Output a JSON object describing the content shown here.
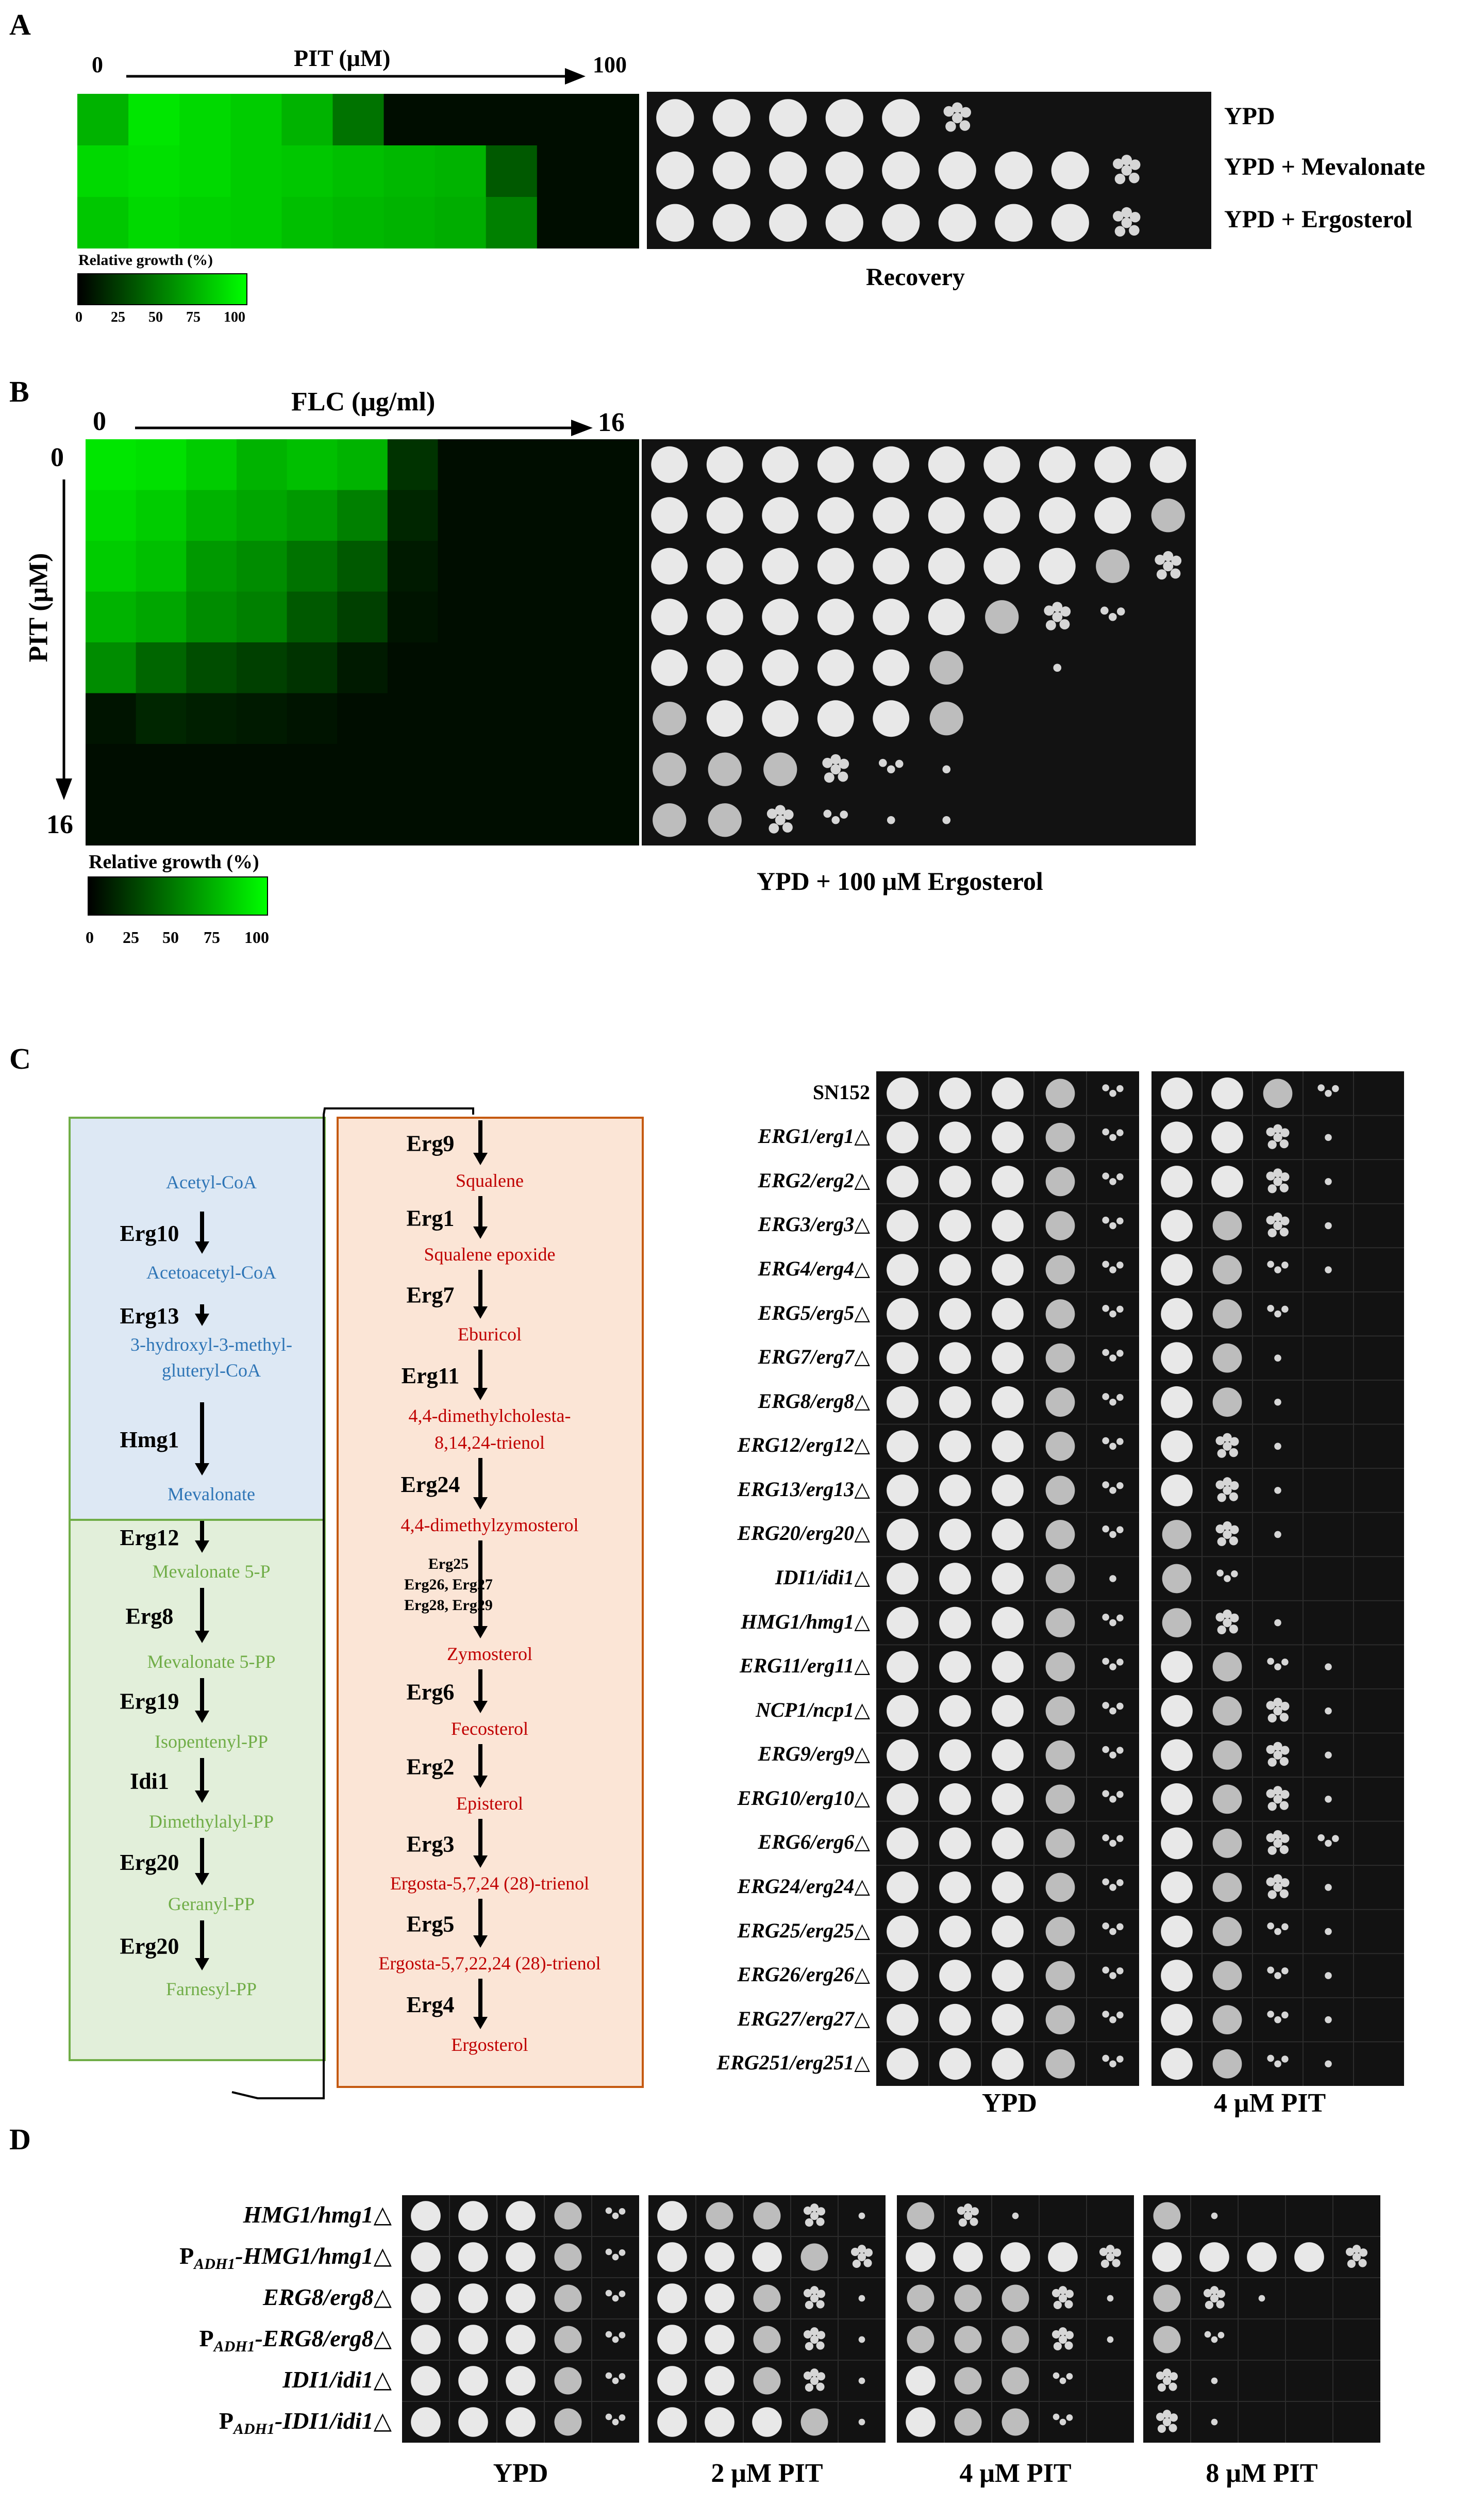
{
  "panel_a": {
    "letter": "A",
    "axis_label": "PIT (μM)",
    "axis_start": "0",
    "axis_end": "100",
    "heatmap_rows": [
      [
        70,
        90,
        85,
        80,
        70,
        45,
        5,
        5,
        5,
        5,
        5
      ],
      [
        85,
        88,
        85,
        80,
        78,
        75,
        72,
        70,
        35,
        5,
        5
      ],
      [
        78,
        85,
        82,
        80,
        75,
        72,
        70,
        68,
        50,
        5,
        5
      ]
    ],
    "legend_title": "Relative growth (%)",
    "legend_ticks": [
      "0",
      "25",
      "50",
      "75",
      "100"
    ],
    "plate_rows": [
      {
        "label": "YPD",
        "spots": [
          5,
          5,
          5,
          5,
          5,
          3,
          0,
          0,
          0,
          0
        ]
      },
      {
        "label": "YPD + Mevalonate",
        "spots": [
          5,
          5,
          5,
          5,
          5,
          5,
          5,
          5,
          3,
          0
        ]
      },
      {
        "label": "YPD + Ergosterol",
        "spots": [
          5,
          5,
          5,
          5,
          5,
          5,
          5,
          5,
          3,
          0
        ]
      }
    ],
    "plate_caption": "Recovery"
  },
  "panel_b": {
    "letter": "B",
    "x_axis_label": "FLC (μg/ml)",
    "x_start": "0",
    "x_end": "16",
    "y_axis_label": "PIT (μM)",
    "y_start": "0",
    "y_end": "16",
    "heatmap_rows": [
      [
        90,
        88,
        80,
        70,
        75,
        70,
        20,
        5,
        5,
        5,
        5
      ],
      [
        85,
        80,
        70,
        65,
        60,
        50,
        15,
        5,
        5,
        5,
        5
      ],
      [
        80,
        75,
        60,
        55,
        45,
        35,
        10,
        5,
        5,
        5,
        5
      ],
      [
        70,
        65,
        55,
        50,
        35,
        25,
        8,
        5,
        5,
        5,
        5
      ],
      [
        55,
        40,
        30,
        25,
        20,
        10,
        5,
        5,
        5,
        5,
        5
      ],
      [
        8,
        15,
        12,
        10,
        8,
        5,
        5,
        5,
        5,
        5,
        5
      ],
      [
        5,
        5,
        5,
        5,
        5,
        5,
        5,
        5,
        5,
        5,
        5
      ],
      [
        5,
        5,
        5,
        5,
        5,
        5,
        5,
        5,
        5,
        5,
        5
      ]
    ],
    "legend_title": "Relative growth (%)",
    "legend_ticks": [
      "0",
      "25",
      "50",
      "75",
      "100"
    ],
    "plate_spots": [
      [
        5,
        5,
        5,
        5,
        5,
        5,
        5,
        5,
        5,
        5
      ],
      [
        5,
        5,
        5,
        5,
        5,
        5,
        5,
        5,
        5,
        4
      ],
      [
        5,
        5,
        5,
        5,
        5,
        5,
        5,
        5,
        4,
        3
      ],
      [
        5,
        5,
        5,
        5,
        5,
        5,
        4,
        3,
        2,
        0
      ],
      [
        5,
        5,
        5,
        5,
        5,
        4,
        0,
        1,
        0,
        0
      ],
      [
        4,
        5,
        5,
        5,
        5,
        4,
        0,
        0,
        0,
        0
      ],
      [
        4,
        4,
        4,
        3,
        2,
        1,
        0,
        0,
        0,
        0
      ],
      [
        4,
        4,
        3,
        2,
        1,
        1,
        0,
        0,
        0,
        0
      ]
    ],
    "plate_caption": "YPD + 100 μM Ergosterol"
  },
  "panel_c": {
    "letter": "C",
    "colors": {
      "mevalonate_fill": "#dde8f4",
      "mevalonate_text": "#2e75b6",
      "isoprenoid_fill": "#e2efda",
      "isoprenoid_text": "#70ad47",
      "sterol_fill": "#fbe5d6",
      "sterol_text": "#c00000",
      "sterol_border": "#c55a11"
    },
    "mevalonate_steps": [
      {
        "metabolite": "Acetyl-CoA"
      },
      {
        "enzyme": "Erg10",
        "metabolite": "Acetoacetyl-CoA"
      },
      {
        "enzyme": "Erg13",
        "metabolite": [
          "3-hydroxyl-3-methyl-",
          "gluteryl-CoA"
        ]
      },
      {
        "enzyme": "Hmg1",
        "metabolite": "Mevalonate"
      }
    ],
    "isoprenoid_steps": [
      {
        "enzyme": "Erg12",
        "metabolite": "Mevalonate  5-P"
      },
      {
        "enzyme": "Erg8",
        "metabolite": "Mevalonate  5-PP"
      },
      {
        "enzyme": "Erg19",
        "metabolite": "Isopentenyl-PP"
      },
      {
        "enzyme": "Idi1",
        "metabolite": "Dimethylalyl-PP"
      },
      {
        "enzyme": "Erg20",
        "metabolite": "Geranyl-PP"
      },
      {
        "enzyme": "Erg20",
        "metabolite": "Farnesyl-PP"
      }
    ],
    "sterol_steps": [
      {
        "enzyme": "Erg9",
        "metabolite": "Squalene"
      },
      {
        "enzyme": "Erg1",
        "metabolite": "Squalene  epoxide"
      },
      {
        "enzyme": "Erg7",
        "metabolite": "Eburicol"
      },
      {
        "enzyme": "Erg11",
        "metabolite": [
          "4,4-dimethylcholesta-",
          "8,14,24-trienol"
        ]
      },
      {
        "enzyme": "Erg24",
        "metabolite": "4,4-dimethylzymosterol"
      },
      {
        "enzyme": [
          "Erg25",
          "Erg26, Erg27",
          "Erg28, Erg29"
        ],
        "metabolite": "Zymosterol"
      },
      {
        "enzyme": "Erg6",
        "metabolite": "Fecosterol"
      },
      {
        "enzyme": "Erg2",
        "metabolite": "Episterol"
      },
      {
        "enzyme": "Erg3",
        "metabolite": "Ergosta-5,7,24  (28)-trienol"
      },
      {
        "enzyme": "Erg5",
        "metabolite": "Ergosta-5,7,22,24  (28)-trienol"
      },
      {
        "enzyme": "Erg4",
        "metabolite": "Ergosterol"
      }
    ],
    "strains": [
      "SN152",
      "ERG1/erg1△",
      "ERG2/erg2△",
      "ERG3/erg3△",
      "ERG4/erg4△",
      "ERG5/erg5△",
      "ERG7/erg7△",
      "ERG8/erg8△",
      "ERG12/erg12△",
      "ERG13/erg13△",
      "ERG20/erg20△",
      "IDI1/idi1△",
      "HMG1/hmg1△",
      "ERG11/erg11△",
      "NCP1/ncp1△",
      "ERG9/erg9△",
      "ERG10/erg10△",
      "ERG6/erg6△",
      "ERG24/erg24△",
      "ERG25/erg25△",
      "ERG26/erg26△",
      "ERG27/erg27△",
      "ERG251/erg251△"
    ],
    "ypd_spots": [
      [
        5,
        5,
        5,
        4,
        2
      ],
      [
        5,
        5,
        5,
        4,
        2
      ],
      [
        5,
        5,
        5,
        4,
        2
      ],
      [
        5,
        5,
        5,
        4,
        2
      ],
      [
        5,
        5,
        5,
        4,
        2
      ],
      [
        5,
        5,
        5,
        4,
        2
      ],
      [
        5,
        5,
        5,
        4,
        2
      ],
      [
        5,
        5,
        5,
        4,
        2
      ],
      [
        5,
        5,
        5,
        4,
        2
      ],
      [
        5,
        5,
        5,
        4,
        2
      ],
      [
        5,
        5,
        5,
        4,
        2
      ],
      [
        5,
        5,
        5,
        4,
        1
      ],
      [
        5,
        5,
        5,
        4,
        2
      ],
      [
        5,
        5,
        5,
        4,
        2
      ],
      [
        5,
        5,
        5,
        4,
        2
      ],
      [
        5,
        5,
        5,
        4,
        2
      ],
      [
        5,
        5,
        5,
        4,
        2
      ],
      [
        5,
        5,
        5,
        4,
        2
      ],
      [
        5,
        5,
        5,
        4,
        2
      ],
      [
        5,
        5,
        5,
        4,
        2
      ],
      [
        5,
        5,
        5,
        4,
        2
      ],
      [
        5,
        5,
        5,
        4,
        2
      ],
      [
        5,
        5,
        5,
        4,
        2
      ]
    ],
    "pit_spots": [
      [
        5,
        5,
        4,
        2,
        0
      ],
      [
        5,
        5,
        3,
        1,
        0
      ],
      [
        5,
        5,
        3,
        1,
        0
      ],
      [
        5,
        4,
        3,
        1,
        0
      ],
      [
        5,
        4,
        2,
        1,
        0
      ],
      [
        5,
        4,
        2,
        0,
        0
      ],
      [
        5,
        4,
        1,
        0,
        0
      ],
      [
        5,
        4,
        1,
        0,
        0
      ],
      [
        5,
        3,
        1,
        0,
        0
      ],
      [
        5,
        3,
        1,
        0,
        0
      ],
      [
        4,
        3,
        1,
        0,
        0
      ],
      [
        4,
        2,
        0,
        0,
        0
      ],
      [
        4,
        3,
        1,
        0,
        0
      ],
      [
        5,
        4,
        2,
        1,
        0
      ],
      [
        5,
        4,
        3,
        1,
        0
      ],
      [
        5,
        4,
        3,
        1,
        0
      ],
      [
        5,
        4,
        3,
        1,
        0
      ],
      [
        5,
        4,
        3,
        2,
        0
      ],
      [
        5,
        4,
        3,
        1,
        0
      ],
      [
        5,
        4,
        2,
        1,
        0
      ],
      [
        5,
        4,
        2,
        1,
        0
      ],
      [
        5,
        4,
        2,
        1,
        0
      ],
      [
        5,
        4,
        2,
        1,
        0
      ]
    ],
    "caption_ypd": "YPD",
    "caption_pit": "4 μM PIT"
  },
  "panel_d": {
    "letter": "D",
    "strains": [
      {
        "prefix": "",
        "sub": "",
        "text": "HMG1/hmg1△"
      },
      {
        "prefix": "P",
        "sub": "ADH1",
        "text": "-HMG1/hmg1△"
      },
      {
        "prefix": "",
        "sub": "",
        "text": "ERG8/erg8△"
      },
      {
        "prefix": "P",
        "sub": "ADH1",
        "text": "-ERG8/erg8△"
      },
      {
        "prefix": "",
        "sub": "",
        "text": "IDI1/idi1△"
      },
      {
        "prefix": "P",
        "sub": "ADH1",
        "text": "-IDI1/idi1△"
      }
    ],
    "plates": [
      {
        "caption": "YPD",
        "spots": [
          [
            5,
            5,
            5,
            4,
            2
          ],
          [
            5,
            5,
            5,
            4,
            2
          ],
          [
            5,
            5,
            5,
            4,
            2
          ],
          [
            5,
            5,
            5,
            4,
            2
          ],
          [
            5,
            5,
            5,
            4,
            2
          ],
          [
            5,
            5,
            5,
            4,
            2
          ]
        ]
      },
      {
        "caption": "2 μM PIT",
        "spots": [
          [
            5,
            4,
            4,
            3,
            1
          ],
          [
            5,
            5,
            5,
            4,
            3
          ],
          [
            5,
            5,
            4,
            3,
            1
          ],
          [
            5,
            5,
            4,
            3,
            1
          ],
          [
            5,
            5,
            4,
            3,
            1
          ],
          [
            5,
            5,
            5,
            4,
            1
          ]
        ]
      },
      {
        "caption": "4 μM PIT",
        "spots": [
          [
            4,
            3,
            1,
            0,
            0
          ],
          [
            5,
            5,
            5,
            5,
            3
          ],
          [
            4,
            4,
            4,
            3,
            1
          ],
          [
            4,
            4,
            4,
            3,
            1
          ],
          [
            5,
            4,
            4,
            2,
            0
          ],
          [
            5,
            4,
            4,
            2,
            0
          ]
        ]
      },
      {
        "caption": "8 μM PIT",
        "spots": [
          [
            4,
            1,
            0,
            0,
            0
          ],
          [
            5,
            5,
            5,
            5,
            3
          ],
          [
            4,
            3,
            1,
            0,
            0
          ],
          [
            4,
            2,
            0,
            0,
            0
          ],
          [
            3,
            1,
            0,
            0,
            0
          ],
          [
            3,
            1,
            0,
            0,
            0
          ]
        ]
      }
    ]
  }
}
